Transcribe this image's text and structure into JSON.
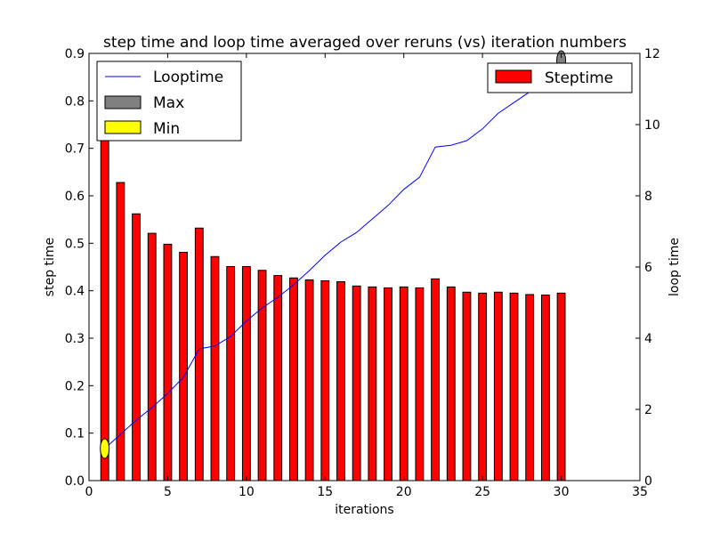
{
  "chart_data": {
    "type": "bar",
    "title": "step time and loop time averaged over reruns (vs) iteration numbers",
    "xlabel": "iterations",
    "ylabel": "step time",
    "y2label": "loop time",
    "xlim": [
      0,
      35
    ],
    "ylim": [
      0,
      0.9
    ],
    "y2lim": [
      0,
      12
    ],
    "xticks": [
      "0",
      "5",
      "10",
      "15",
      "20",
      "25",
      "30",
      "35"
    ],
    "yticks": [
      "0.0",
      "0.1",
      "0.2",
      "0.3",
      "0.4",
      "0.5",
      "0.6",
      "0.7",
      "0.8",
      "0.9"
    ],
    "y2ticks": [
      "0",
      "2",
      "4",
      "6",
      "8",
      "10",
      "12"
    ],
    "grid": false,
    "bar_series": {
      "name": "Steptime",
      "color": "#ff0000",
      "axis": "left",
      "x": [
        1,
        2,
        3,
        4,
        5,
        6,
        7,
        8,
        9,
        10,
        11,
        12,
        13,
        14,
        15,
        16,
        17,
        18,
        19,
        20,
        21,
        22,
        23,
        24,
        25,
        26,
        27,
        28,
        29,
        30
      ],
      "values": [
        0.72,
        0.628,
        0.562,
        0.521,
        0.498,
        0.481,
        0.532,
        0.472,
        0.451,
        0.451,
        0.443,
        0.432,
        0.427,
        0.423,
        0.421,
        0.419,
        0.41,
        0.408,
        0.406,
        0.408,
        0.406,
        0.425,
        0.408,
        0.397,
        0.395,
        0.397,
        0.395,
        0.392,
        0.391,
        0.395
      ]
    },
    "line_series": {
      "name": "Looptime",
      "color": "#0000ff",
      "axis": "right",
      "x": [
        1,
        2,
        3,
        4,
        5,
        6,
        7,
        8,
        9,
        10,
        11,
        12,
        13,
        14,
        15,
        16,
        17,
        18,
        19,
        20,
        21,
        22,
        23,
        24,
        25,
        26,
        27,
        28,
        29,
        30
      ],
      "values": [
        0.9,
        1.3,
        1.7,
        2.05,
        2.45,
        2.9,
        3.7,
        3.78,
        4.05,
        4.48,
        4.85,
        5.15,
        5.5,
        5.9,
        6.33,
        6.7,
        6.97,
        7.35,
        7.73,
        8.18,
        8.52,
        9.37,
        9.42,
        9.55,
        9.88,
        10.32,
        10.62,
        10.92,
        11.3,
        11.8
      ]
    },
    "max_marker": {
      "name": "Max",
      "color": "#808080",
      "x": 30,
      "value": 11.8,
      "axis": "right"
    },
    "min_marker": {
      "name": "Min",
      "color": "#ffff00",
      "x": 1,
      "value": 0.9,
      "axis": "right"
    },
    "legend_left": {
      "placement": "upper-left",
      "entries": [
        "Looptime",
        "Max",
        "Min"
      ]
    },
    "legend_right": {
      "placement": "upper-right",
      "entries": [
        "Steptime"
      ]
    }
  }
}
